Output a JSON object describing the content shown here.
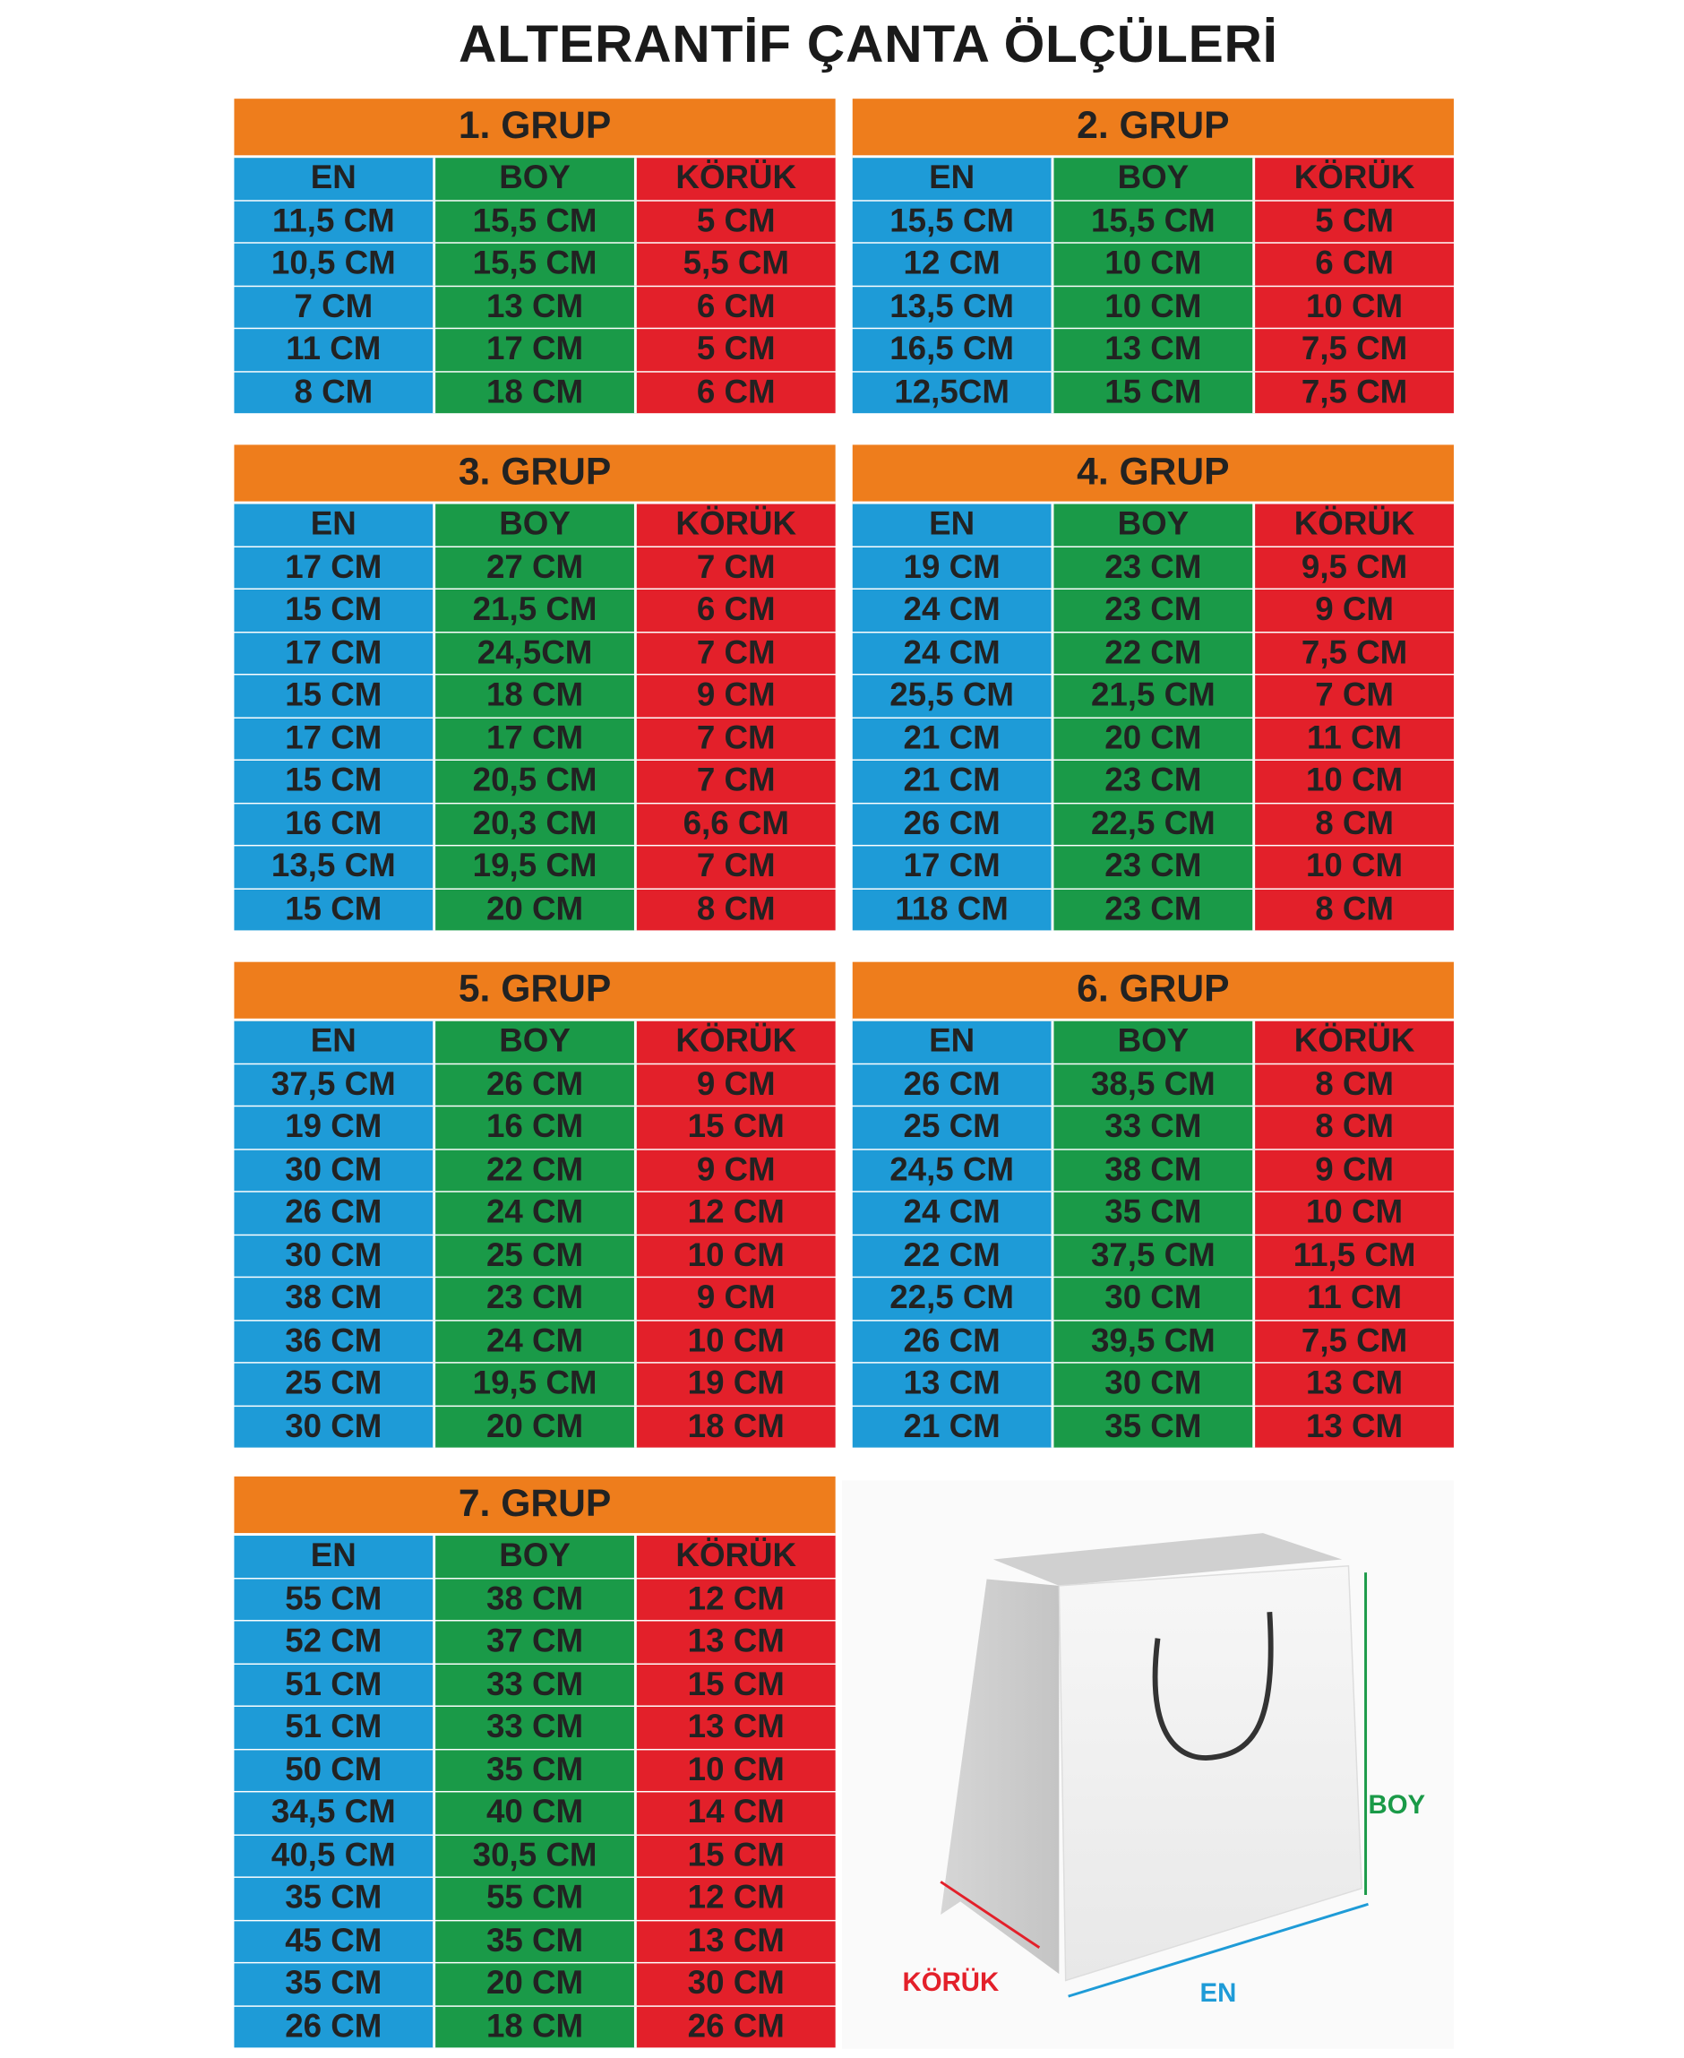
{
  "title": "ALTERANTİF ÇANTA ÖLÇÜLERİ",
  "groups": [
    {
      "title": "1. GRUP",
      "columns": [
        "EN",
        "BOY",
        "KÖRÜK"
      ],
      "rows": [
        [
          "11,5 CM",
          "15,5 CM",
          "5 CM"
        ],
        [
          "10,5 CM",
          "15,5 CM",
          "5,5 CM"
        ],
        [
          "7 CM",
          "13 CM",
          "6 CM"
        ],
        [
          "11 CM",
          "17 CM",
          "5 CM"
        ],
        [
          "8 CM",
          "18 CM",
          "6 CM"
        ]
      ]
    },
    {
      "title": "2. GRUP",
      "columns": [
        "EN",
        "BOY",
        "KÖRÜK"
      ],
      "rows": [
        [
          "15,5 CM",
          "15,5 CM",
          "5 CM"
        ],
        [
          "12 CM",
          "10 CM",
          "6 CM"
        ],
        [
          "13,5 CM",
          "10 CM",
          "10 CM"
        ],
        [
          "16,5 CM",
          "13 CM",
          "7,5 CM"
        ],
        [
          "12,5CM",
          "15 CM",
          "7,5 CM"
        ]
      ]
    },
    {
      "title": "3. GRUP",
      "columns": [
        "EN",
        "BOY",
        "KÖRÜK"
      ],
      "rows": [
        [
          "17 CM",
          "27 CM",
          "7 CM"
        ],
        [
          "15 CM",
          "21,5 CM",
          "6 CM"
        ],
        [
          "17 CM",
          "24,5CM",
          "7 CM"
        ],
        [
          "15 CM",
          "18 CM",
          "9 CM"
        ],
        [
          "17 CM",
          "17 CM",
          "7 CM"
        ],
        [
          "15 CM",
          "20,5 CM",
          "7 CM"
        ],
        [
          "16 CM",
          "20,3 CM",
          "6,6 CM"
        ],
        [
          "13,5 CM",
          "19,5 CM",
          "7 CM"
        ],
        [
          "15 CM",
          "20 CM",
          "8 CM"
        ]
      ]
    },
    {
      "title": "4. GRUP",
      "columns": [
        "EN",
        "BOY",
        "KÖRÜK"
      ],
      "rows": [
        [
          "19 CM",
          "23 CM",
          "9,5 CM"
        ],
        [
          "24 CM",
          "23 CM",
          "9 CM"
        ],
        [
          "24 CM",
          "22 CM",
          "7,5 CM"
        ],
        [
          "25,5 CM",
          "21,5 CM",
          "7 CM"
        ],
        [
          "21 CM",
          "20 CM",
          "11 CM"
        ],
        [
          "21 CM",
          "23 CM",
          "10 CM"
        ],
        [
          "26 CM",
          "22,5 CM",
          "8 CM"
        ],
        [
          "17 CM",
          "23 CM",
          "10 CM"
        ],
        [
          "118 CM",
          "23 CM",
          "8 CM"
        ]
      ]
    },
    {
      "title": "5. GRUP",
      "columns": [
        "EN",
        "BOY",
        "KÖRÜK"
      ],
      "rows": [
        [
          "37,5 CM",
          "26 CM",
          "9 CM"
        ],
        [
          "19 CM",
          "16 CM",
          "15 CM"
        ],
        [
          "30 CM",
          "22 CM",
          "9 CM"
        ],
        [
          "26 CM",
          "24 CM",
          "12 CM"
        ],
        [
          "30 CM",
          "25 CM",
          "10 CM"
        ],
        [
          "38 CM",
          "23 CM",
          "9 CM"
        ],
        [
          "36 CM",
          "24 CM",
          "10 CM"
        ],
        [
          "25 CM",
          "19,5 CM",
          "19 CM"
        ],
        [
          "30 CM",
          "20 CM",
          "18 CM"
        ]
      ]
    },
    {
      "title": "6. GRUP",
      "columns": [
        "EN",
        "BOY",
        "KÖRÜK"
      ],
      "rows": [
        [
          "26 CM",
          "38,5 CM",
          "8 CM"
        ],
        [
          "25 CM",
          "33 CM",
          "8 CM"
        ],
        [
          "24,5 CM",
          "38 CM",
          "9 CM"
        ],
        [
          "24 CM",
          "35 CM",
          "10 CM"
        ],
        [
          "22 CM",
          "37,5 CM",
          "11,5 CM"
        ],
        [
          "22,5 CM",
          "30 CM",
          "11 CM"
        ],
        [
          "26 CM",
          "39,5 CM",
          "7,5 CM"
        ],
        [
          "13 CM",
          "30 CM",
          "13 CM"
        ],
        [
          "21 CM",
          "35 CM",
          "13 CM"
        ]
      ]
    },
    {
      "title": "7. GRUP",
      "columns": [
        "EN",
        "BOY",
        "KÖRÜK"
      ],
      "rows": [
        [
          "55 CM",
          "38 CM",
          "12 CM"
        ],
        [
          "52 CM",
          "37 CM",
          "13 CM"
        ],
        [
          "51 CM",
          "33 CM",
          "15 CM"
        ],
        [
          "51 CM",
          "33 CM",
          "13 CM"
        ],
        [
          "50 CM",
          "35 CM",
          "10 CM"
        ],
        [
          "34,5 CM",
          "40 CM",
          "14 CM"
        ],
        [
          "40,5 CM",
          "30,5 CM",
          "15 CM"
        ],
        [
          "35 CM",
          "55 CM",
          "12 CM"
        ],
        [
          "45 CM",
          "35 CM",
          "13 CM"
        ],
        [
          "35 CM",
          "20 CM",
          "30 CM"
        ],
        [
          "26 CM",
          "18 CM",
          "26 CM"
        ]
      ]
    }
  ],
  "diagram": {
    "boy": "BOY",
    "koruk": "KÖRÜK",
    "en": "EN"
  }
}
